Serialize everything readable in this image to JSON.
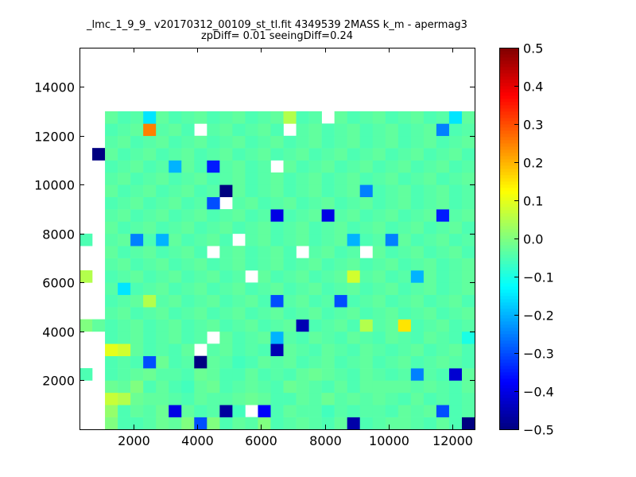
{
  "chart_data": {
    "type": "heatmap",
    "title_line1": "_lmc_1_9_9_ v20170312_00109_st_tl.fit 4349539 2MASS k_m - apermag3",
    "title_line2": "zpDiff= 0.01 seeingDiff=0.24",
    "xlim": [
      300,
      12700
    ],
    "ylim": [
      0,
      15600
    ],
    "x_ticks": [
      2000,
      4000,
      6000,
      8000,
      10000,
      12000
    ],
    "y_ticks": [
      2000,
      4000,
      6000,
      8000,
      10000,
      12000,
      14000
    ],
    "x_tick_labels": [
      "2000",
      "4000",
      "6000",
      "8000",
      "10000",
      "12000"
    ],
    "y_tick_labels": [
      "2000",
      "4000",
      "6000",
      "8000",
      "10000",
      "12000",
      "14000"
    ],
    "colormap": "jet",
    "vmin": -0.5,
    "vmax": 0.5,
    "colorbar_ticks": [
      0.5,
      0.4,
      0.3,
      0.2,
      0.1,
      0.0,
      -0.1,
      -0.2,
      -0.3,
      -0.4,
      -0.5
    ],
    "colorbar_tick_labels": [
      "0.5",
      "0.4",
      "0.3",
      "0.2",
      "0.1",
      "0.0",
      "−0.1",
      "−0.2",
      "−0.3",
      "−0.4",
      "−0.5"
    ],
    "grid": false,
    "cell_width": 400,
    "cell_height": 500,
    "x_start": 300,
    "y_start": 0,
    "null_legend": "values are residuals; null = empty (white) cell",
    "values": [
      [
        null,
        null,
        0.0,
        -0.05,
        -0.05,
        -0.04,
        -0.02,
        -0.03,
        0.0,
        -0.3,
        0.0,
        -0.05,
        -0.03,
        -0.04,
        0.0,
        -0.05,
        -0.04,
        -0.03,
        -0.04,
        -0.05,
        -0.03,
        -0.46,
        -0.05,
        -0.04,
        -0.03,
        -0.03,
        -0.04,
        -0.05,
        -0.03,
        -0.05,
        -0.5,
        null
      ],
      [
        null,
        null,
        0.02,
        -0.05,
        -0.03,
        -0.04,
        -0.02,
        -0.4,
        -0.03,
        -0.05,
        -0.04,
        -0.47,
        -0.06,
        null,
        -0.38,
        -0.05,
        -0.03,
        -0.04,
        -0.04,
        -0.06,
        -0.04,
        -0.05,
        -0.04,
        -0.04,
        -0.05,
        -0.03,
        -0.04,
        -0.03,
        -0.3,
        -0.05,
        -0.04,
        null
      ],
      [
        null,
        null,
        0.07,
        0.05,
        -0.02,
        -0.03,
        -0.03,
        -0.04,
        -0.05,
        -0.03,
        -0.04,
        -0.04,
        -0.03,
        -0.02,
        -0.03,
        -0.05,
        -0.05,
        -0.03,
        -0.04,
        -0.02,
        -0.04,
        -0.03,
        -0.04,
        -0.03,
        -0.04,
        -0.05,
        -0.03,
        -0.05,
        -0.04,
        -0.05,
        -0.04,
        null
      ],
      [
        null,
        null,
        -0.02,
        -0.03,
        0.0,
        -0.05,
        -0.03,
        -0.05,
        -0.06,
        -0.03,
        -0.02,
        -0.05,
        -0.04,
        -0.03,
        -0.04,
        -0.05,
        -0.02,
        -0.03,
        -0.04,
        -0.05,
        -0.03,
        -0.05,
        -0.03,
        -0.03,
        -0.03,
        -0.03,
        -0.04,
        -0.03,
        -0.04,
        -0.05,
        -0.03,
        null
      ],
      [
        -0.05,
        null,
        -0.05,
        -0.04,
        -0.03,
        -0.02,
        -0.04,
        -0.04,
        -0.05,
        -0.02,
        -0.03,
        -0.05,
        -0.05,
        -0.03,
        -0.05,
        -0.04,
        -0.05,
        -0.03,
        -0.02,
        -0.03,
        -0.04,
        -0.05,
        -0.03,
        -0.04,
        -0.05,
        -0.04,
        -0.25,
        -0.04,
        -0.05,
        -0.42,
        -0.03,
        -0.05
      ],
      [
        null,
        null,
        -0.05,
        -0.04,
        -0.05,
        -0.3,
        -0.02,
        -0.05,
        -0.04,
        -0.5,
        -0.03,
        -0.04,
        -0.06,
        -0.05,
        -0.03,
        -0.04,
        -0.03,
        -0.05,
        -0.04,
        -0.03,
        -0.05,
        -0.04,
        -0.03,
        -0.05,
        -0.04,
        -0.03,
        -0.05,
        -0.04,
        -0.03,
        -0.04,
        -0.05,
        null
      ],
      [
        null,
        null,
        0.1,
        0.08,
        -0.03,
        -0.05,
        -0.04,
        -0.05,
        -0.03,
        null,
        -0.04,
        -0.03,
        -0.05,
        -0.04,
        -0.05,
        -0.45,
        -0.03,
        -0.04,
        -0.05,
        -0.03,
        -0.04,
        -0.05,
        -0.03,
        -0.04,
        -0.05,
        -0.04,
        -0.03,
        -0.05,
        -0.04,
        -0.03,
        -0.05,
        null
      ],
      [
        null,
        null,
        -0.05,
        -0.04,
        -0.03,
        -0.05,
        -0.04,
        -0.03,
        -0.05,
        -0.04,
        null,
        -0.03,
        -0.05,
        -0.04,
        -0.03,
        -0.2,
        -0.04,
        -0.05,
        -0.03,
        -0.04,
        -0.05,
        -0.03,
        -0.04,
        -0.05,
        -0.03,
        -0.04,
        -0.05,
        -0.03,
        -0.04,
        -0.05,
        -0.1,
        null
      ],
      [
        0.0,
        -0.03,
        -0.05,
        -0.04,
        -0.03,
        -0.05,
        -0.04,
        -0.03,
        -0.05,
        -0.04,
        -0.03,
        -0.05,
        -0.04,
        -0.03,
        -0.05,
        -0.04,
        -0.03,
        -0.45,
        -0.05,
        -0.04,
        -0.03,
        -0.05,
        0.05,
        -0.04,
        -0.03,
        0.15,
        -0.05,
        -0.04,
        -0.03,
        -0.05,
        -0.04,
        null
      ],
      [
        null,
        null,
        -0.04,
        -0.03,
        -0.05,
        -0.04,
        -0.03,
        -0.05,
        -0.04,
        -0.03,
        -0.05,
        -0.04,
        -0.03,
        -0.05,
        -0.04,
        -0.03,
        -0.05,
        -0.04,
        -0.03,
        -0.05,
        -0.04,
        -0.03,
        -0.05,
        -0.04,
        -0.03,
        -0.05,
        -0.04,
        -0.03,
        -0.05,
        -0.04,
        -0.03,
        null
      ],
      [
        null,
        null,
        -0.05,
        -0.04,
        -0.03,
        0.05,
        -0.04,
        -0.03,
        -0.05,
        -0.04,
        -0.03,
        -0.05,
        -0.04,
        -0.03,
        -0.05,
        -0.3,
        -0.04,
        -0.03,
        -0.05,
        -0.04,
        -0.3,
        -0.05,
        -0.04,
        -0.03,
        -0.05,
        -0.04,
        -0.03,
        -0.05,
        -0.04,
        -0.03,
        -0.05,
        null
      ],
      [
        null,
        null,
        -0.04,
        -0.15,
        -0.05,
        -0.04,
        -0.03,
        -0.05,
        -0.04,
        -0.03,
        -0.05,
        -0.04,
        -0.03,
        -0.05,
        -0.04,
        -0.03,
        -0.05,
        -0.04,
        -0.03,
        -0.05,
        -0.04,
        -0.03,
        -0.05,
        -0.04,
        -0.03,
        -0.05,
        -0.04,
        -0.03,
        -0.05,
        -0.04,
        -0.03,
        null
      ],
      [
        0.05,
        null,
        -0.05,
        -0.04,
        -0.03,
        -0.05,
        -0.04,
        -0.03,
        -0.05,
        -0.04,
        -0.03,
        -0.05,
        -0.04,
        null,
        -0.03,
        -0.05,
        -0.04,
        -0.03,
        -0.05,
        -0.04,
        -0.03,
        0.08,
        -0.04,
        -0.03,
        -0.05,
        -0.04,
        -0.2,
        -0.03,
        -0.05,
        -0.04,
        -0.03,
        null
      ],
      [
        null,
        null,
        -0.04,
        -0.03,
        -0.05,
        -0.04,
        -0.03,
        -0.05,
        -0.04,
        -0.03,
        -0.05,
        -0.04,
        -0.03,
        -0.05,
        -0.04,
        -0.03,
        -0.05,
        -0.04,
        -0.03,
        -0.05,
        -0.04,
        -0.03,
        -0.05,
        -0.04,
        -0.03,
        -0.05,
        -0.04,
        -0.03,
        -0.05,
        -0.04,
        -0.03,
        null
      ],
      [
        null,
        null,
        -0.03,
        -0.05,
        -0.04,
        -0.03,
        -0.05,
        -0.04,
        -0.03,
        -0.05,
        null,
        -0.04,
        -0.03,
        -0.05,
        -0.04,
        -0.03,
        -0.05,
        null,
        -0.04,
        -0.03,
        -0.05,
        -0.04,
        null,
        -0.03,
        -0.05,
        -0.04,
        -0.03,
        -0.05,
        -0.04,
        -0.03,
        -0.05,
        null
      ],
      [
        -0.05,
        null,
        -0.04,
        -0.03,
        -0.25,
        -0.05,
        -0.2,
        -0.03,
        -0.05,
        -0.04,
        -0.03,
        -0.05,
        null,
        -0.04,
        -0.03,
        -0.05,
        -0.04,
        -0.03,
        -0.05,
        -0.04,
        -0.03,
        -0.2,
        -0.05,
        -0.04,
        -0.25,
        -0.03,
        -0.05,
        -0.04,
        -0.03,
        -0.05,
        -0.04,
        -0.05
      ],
      [
        null,
        null,
        -0.03,
        -0.05,
        -0.04,
        -0.03,
        -0.05,
        -0.04,
        -0.03,
        -0.05,
        -0.04,
        -0.03,
        -0.05,
        -0.04,
        -0.03,
        -0.05,
        -0.04,
        -0.03,
        -0.05,
        -0.04,
        -0.03,
        -0.05,
        -0.04,
        -0.03,
        -0.05,
        -0.04,
        -0.03,
        -0.05,
        -0.04,
        -0.03,
        -0.05,
        null
      ],
      [
        null,
        null,
        -0.04,
        -0.03,
        -0.05,
        -0.04,
        -0.03,
        -0.05,
        -0.04,
        -0.03,
        -0.05,
        -0.04,
        -0.03,
        -0.05,
        -0.04,
        -0.4,
        -0.05,
        -0.04,
        -0.03,
        -0.4,
        -0.04,
        -0.03,
        -0.05,
        -0.04,
        -0.03,
        -0.05,
        -0.04,
        -0.03,
        -0.35,
        -0.04,
        -0.03,
        null
      ],
      [
        null,
        null,
        -0.05,
        -0.04,
        -0.03,
        -0.05,
        -0.04,
        -0.03,
        -0.05,
        -0.04,
        -0.3,
        null,
        -0.04,
        -0.03,
        -0.05,
        -0.04,
        -0.03,
        -0.05,
        -0.04,
        -0.03,
        -0.05,
        -0.04,
        -0.03,
        -0.05,
        -0.04,
        -0.03,
        -0.05,
        -0.04,
        -0.03,
        -0.05,
        -0.04,
        -0.05
      ],
      [
        null,
        null,
        -0.03,
        -0.05,
        -0.04,
        -0.03,
        -0.05,
        -0.04,
        -0.03,
        -0.05,
        -0.04,
        -0.5,
        -0.03,
        -0.05,
        -0.04,
        -0.03,
        -0.05,
        -0.04,
        -0.03,
        -0.05,
        -0.04,
        -0.03,
        -0.25,
        -0.05,
        -0.04,
        -0.03,
        -0.05,
        -0.04,
        -0.03,
        -0.05,
        -0.04,
        null
      ],
      [
        null,
        null,
        -0.04,
        -0.03,
        -0.05,
        -0.04,
        -0.03,
        -0.05,
        -0.04,
        -0.03,
        -0.05,
        -0.04,
        -0.03,
        -0.05,
        -0.04,
        -0.03,
        -0.05,
        -0.04,
        -0.03,
        -0.05,
        -0.04,
        -0.03,
        -0.05,
        -0.04,
        -0.03,
        -0.05,
        -0.04,
        -0.03,
        -0.05,
        -0.04,
        -0.03,
        null
      ],
      [
        null,
        null,
        -0.05,
        -0.04,
        -0.03,
        -0.05,
        -0.04,
        -0.2,
        -0.03,
        -0.05,
        -0.35,
        -0.04,
        -0.03,
        -0.05,
        -0.04,
        null,
        -0.03,
        -0.05,
        -0.04,
        -0.03,
        -0.05,
        -0.04,
        -0.03,
        -0.05,
        -0.04,
        -0.03,
        -0.05,
        -0.04,
        -0.03,
        -0.05,
        -0.04,
        -0.05
      ],
      [
        null,
        -0.5,
        -0.03,
        -0.05,
        -0.04,
        -0.03,
        -0.05,
        -0.04,
        -0.03,
        -0.05,
        -0.04,
        -0.03,
        -0.05,
        -0.04,
        -0.03,
        -0.05,
        -0.04,
        -0.03,
        -0.05,
        -0.04,
        -0.03,
        -0.05,
        -0.04,
        -0.03,
        -0.05,
        -0.04,
        -0.03,
        -0.05,
        -0.04,
        -0.03,
        -0.05,
        null
      ],
      [
        null,
        null,
        -0.04,
        -0.03,
        -0.05,
        -0.04,
        -0.03,
        -0.05,
        -0.04,
        -0.03,
        -0.05,
        -0.04,
        -0.03,
        -0.05,
        -0.04,
        -0.03,
        -0.05,
        -0.04,
        -0.03,
        -0.05,
        -0.04,
        -0.03,
        -0.05,
        -0.04,
        -0.03,
        -0.05,
        -0.04,
        -0.03,
        -0.05,
        -0.04,
        -0.03,
        null
      ],
      [
        null,
        null,
        -0.05,
        -0.04,
        -0.03,
        0.25,
        -0.04,
        -0.03,
        -0.05,
        null,
        -0.04,
        -0.03,
        -0.05,
        -0.04,
        -0.03,
        -0.05,
        null,
        -0.04,
        -0.03,
        -0.05,
        -0.04,
        -0.03,
        -0.05,
        -0.04,
        -0.03,
        -0.05,
        -0.04,
        -0.03,
        -0.25,
        -0.05,
        -0.04,
        null
      ],
      [
        null,
        null,
        -0.03,
        -0.05,
        -0.04,
        -0.15,
        -0.03,
        -0.05,
        -0.04,
        -0.03,
        -0.05,
        -0.04,
        -0.03,
        -0.05,
        -0.04,
        -0.03,
        0.05,
        -0.05,
        -0.04,
        null,
        -0.03,
        -0.05,
        -0.04,
        -0.03,
        -0.05,
        -0.04,
        -0.03,
        -0.05,
        -0.04,
        -0.15,
        -0.03,
        null
      ]
    ]
  }
}
